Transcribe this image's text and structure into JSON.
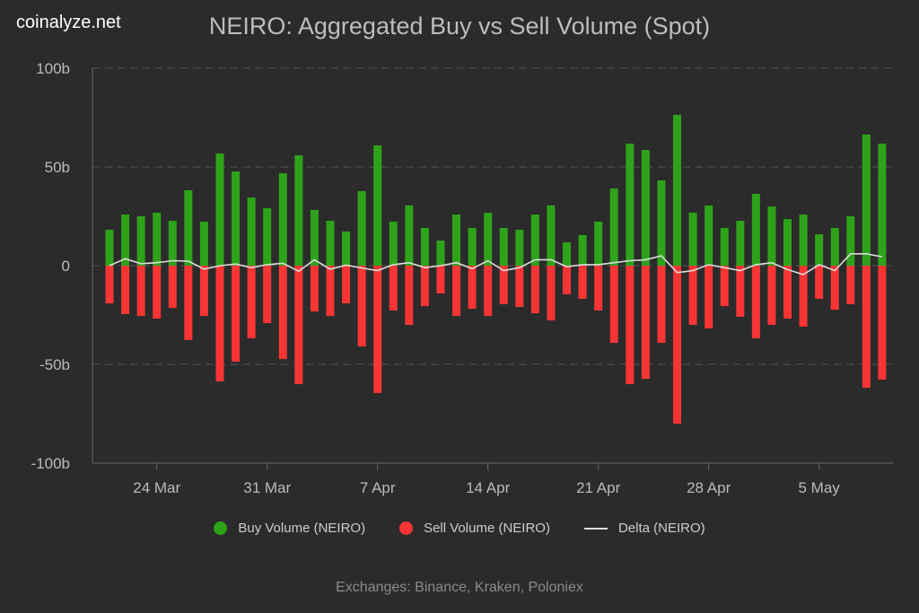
{
  "brand": "coinalyze.net",
  "chart_data": {
    "type": "bar",
    "title": "NEIRO: Aggregated Buy vs Sell Volume (Spot)",
    "start_date": "2024-03-21",
    "ylim": [
      -100,
      100
    ],
    "yticks": [
      {
        "v": 100,
        "label": "100b"
      },
      {
        "v": 50,
        "label": "50b"
      },
      {
        "v": 0,
        "label": "0"
      },
      {
        "v": -50,
        "label": "-50b"
      },
      {
        "v": -100,
        "label": "-100b"
      }
    ],
    "xticks": [
      {
        "day": 3,
        "label": "24 Mar"
      },
      {
        "day": 10,
        "label": "31 Mar"
      },
      {
        "day": 17,
        "label": "7 Apr"
      },
      {
        "day": 24,
        "label": "14 Apr"
      },
      {
        "day": 31,
        "label": "21 Apr"
      },
      {
        "day": 38,
        "label": "28 Apr"
      },
      {
        "day": 45,
        "label": "5 May"
      }
    ],
    "grid": true,
    "legend_position": "bottom",
    "colors": {
      "buy": "#2ea31a",
      "sell": "#f73535",
      "delta": "#dddddd"
    },
    "series": [
      {
        "name": "Buy Volume (NEIRO)",
        "values": [
          18.2,
          25.9,
          25.0,
          26.8,
          22.7,
          38.2,
          22.3,
          56.8,
          47.7,
          34.5,
          29.1,
          46.8,
          55.9,
          28.2,
          22.7,
          17.3,
          37.7,
          60.9,
          22.3,
          30.5,
          19.1,
          12.7,
          25.9,
          19.1,
          26.8,
          19.1,
          18.2,
          25.9,
          30.5,
          11.8,
          15.5,
          22.3,
          39.1,
          61.8,
          58.6,
          43.2,
          76.4,
          26.8,
          30.5,
          19.1,
          22.7,
          36.4,
          30.0,
          23.6,
          25.9,
          15.9,
          19.1,
          25.0,
          66.4,
          61.8
        ]
      },
      {
        "name": "Sell Volume (NEIRO)",
        "values": [
          -19.1,
          -24.5,
          -25.5,
          -26.8,
          -21.4,
          -37.7,
          -25.5,
          -58.6,
          -48.6,
          -36.8,
          -29.1,
          -47.3,
          -60.0,
          -23.2,
          -25.5,
          -19.1,
          -40.9,
          -64.5,
          -22.7,
          -30.0,
          -20.5,
          -14.1,
          -25.5,
          -21.8,
          -25.5,
          -19.5,
          -20.9,
          -24.1,
          -27.7,
          -14.5,
          -16.8,
          -22.7,
          -39.1,
          -60.0,
          -57.3,
          -39.1,
          -80.0,
          -30.0,
          -31.8,
          -20.5,
          -25.9,
          -36.8,
          -30.0,
          -26.8,
          -30.9,
          -16.8,
          -22.3,
          -19.5,
          -61.8,
          -57.7
        ]
      },
      {
        "name": "Delta (NEIRO)",
        "values": [
          0,
          3.5,
          1,
          1.5,
          2.5,
          2.3,
          -1.8,
          0,
          0.8,
          -1,
          0.5,
          1.2,
          -2.8,
          3,
          -1.8,
          0.3,
          -1.2,
          -2.5,
          0.5,
          1.5,
          -1,
          0,
          1.5,
          -1.5,
          2.5,
          -2.5,
          -1,
          3,
          3,
          -0.5,
          0.5,
          0.5,
          1.5,
          2.5,
          3,
          5,
          -3.5,
          -2.5,
          0.5,
          -1,
          -2.5,
          0.5,
          1.5,
          -2,
          -4.5,
          0.5,
          -2.5,
          6,
          6,
          4.5
        ]
      }
    ]
  },
  "footer": "Exchanges: Binance, Kraken, Poloniex"
}
